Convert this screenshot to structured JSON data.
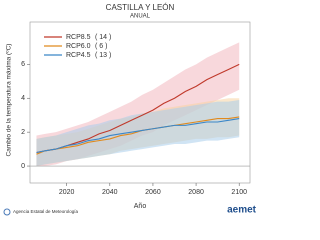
{
  "chart_data": {
    "type": "line",
    "title": "CASTILLA Y LEÓN",
    "subtitle": "ANUAL",
    "y_label": "Cambio de la temperatura máxima (ºC)",
    "x_label": "Año",
    "footer": "Agencia Estatal de Meteorología",
    "brand": "aemet",
    "x": [
      2006,
      2010,
      2015,
      2020,
      2025,
      2030,
      2035,
      2040,
      2045,
      2050,
      2055,
      2060,
      2065,
      2070,
      2075,
      2080,
      2085,
      2090,
      2095,
      2100
    ],
    "xlim": [
      2003,
      2105
    ],
    "xticks": [
      2020,
      2040,
      2060,
      2080,
      2100
    ],
    "ylim": [
      -1,
      8.5
    ],
    "yticks": [
      0,
      2,
      4,
      6
    ],
    "series": [
      {
        "name": "RCP8.5",
        "models": {
          "value": 14,
          "label": "( 14 )"
        },
        "color": "#c0392b",
        "band_color": "#f2b8bf",
        "values": [
          0.8,
          0.9,
          1.0,
          1.2,
          1.4,
          1.6,
          1.9,
          2.1,
          2.4,
          2.7,
          3.0,
          3.3,
          3.7,
          4.0,
          4.4,
          4.7,
          5.1,
          5.4,
          5.7,
          6.0
        ],
        "lower": [
          0.0,
          0.0,
          0.1,
          0.3,
          0.4,
          0.6,
          0.8,
          1.0,
          1.2,
          1.5,
          1.8,
          2.0,
          2.4,
          2.7,
          3.0,
          3.3,
          3.6,
          3.9,
          4.2,
          4.5
        ],
        "upper": [
          1.8,
          1.9,
          2.0,
          2.2,
          2.4,
          2.6,
          2.9,
          3.2,
          3.5,
          3.8,
          4.2,
          4.5,
          4.9,
          5.3,
          5.7,
          6.0,
          6.4,
          6.7,
          7.0,
          7.3
        ]
      },
      {
        "name": "RCP6.0",
        "models": {
          "value": 6,
          "label": "(  6 )"
        },
        "color": "#e08a1e",
        "band_color": "#f7d4a3",
        "values": [
          0.7,
          0.9,
          1.0,
          1.1,
          1.2,
          1.4,
          1.5,
          1.6,
          1.8,
          1.9,
          2.1,
          2.2,
          2.3,
          2.4,
          2.5,
          2.6,
          2.7,
          2.8,
          2.8,
          2.9
        ],
        "lower": [
          0.0,
          0.1,
          0.2,
          0.3,
          0.4,
          0.5,
          0.6,
          0.7,
          0.9,
          1.0,
          1.1,
          1.2,
          1.3,
          1.4,
          1.5,
          1.6,
          1.6,
          1.7,
          1.7,
          1.8
        ],
        "upper": [
          1.6,
          1.7,
          1.8,
          1.9,
          2.0,
          2.2,
          2.4,
          2.6,
          2.8,
          2.9,
          3.1,
          3.2,
          3.4,
          3.5,
          3.6,
          3.7,
          3.8,
          3.9,
          4.0,
          4.0
        ]
      },
      {
        "name": "RCP4.5",
        "models": {
          "value": 13,
          "label": "( 13 )"
        },
        "color": "#3a86c8",
        "band_color": "#a9cdeb",
        "values": [
          0.8,
          0.9,
          1.0,
          1.2,
          1.3,
          1.5,
          1.6,
          1.8,
          1.9,
          2.0,
          2.1,
          2.2,
          2.3,
          2.4,
          2.4,
          2.5,
          2.6,
          2.6,
          2.7,
          2.8
        ],
        "lower": [
          0.0,
          0.1,
          0.2,
          0.3,
          0.4,
          0.5,
          0.6,
          0.7,
          0.8,
          0.9,
          1.0,
          1.1,
          1.2,
          1.3,
          1.3,
          1.4,
          1.5,
          1.5,
          1.6,
          1.7
        ],
        "upper": [
          1.6,
          1.7,
          1.8,
          2.0,
          2.2,
          2.4,
          2.5,
          2.7,
          2.8,
          3.0,
          3.1,
          3.2,
          3.3,
          3.4,
          3.5,
          3.6,
          3.7,
          3.8,
          3.8,
          3.9
        ]
      }
    ]
  }
}
